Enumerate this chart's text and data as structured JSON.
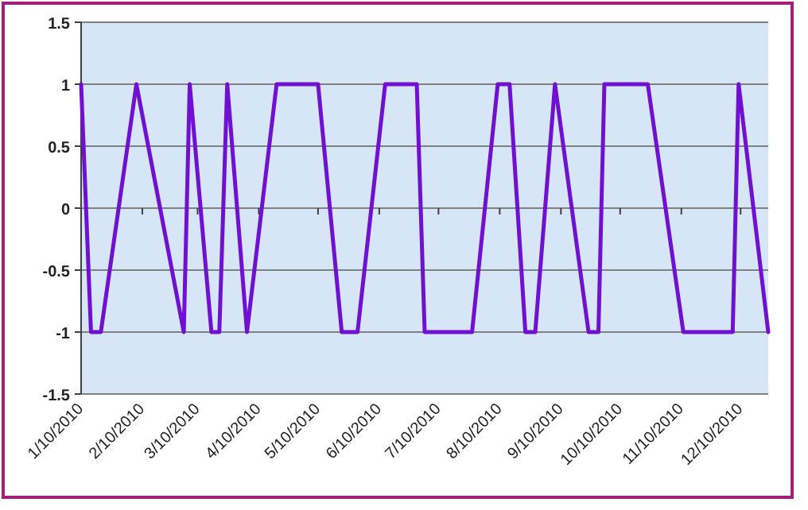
{
  "chart_data": {
    "type": "line",
    "x": [
      "2010-01-10",
      "2010-01-15",
      "2010-01-20",
      "2010-02-07",
      "2010-03-03",
      "2010-03-06",
      "2010-03-17",
      "2010-03-21",
      "2010-03-25",
      "2010-04-04",
      "2010-04-19",
      "2010-05-10",
      "2010-05-22",
      "2010-05-30",
      "2010-06-13",
      "2010-06-29",
      "2010-07-03",
      "2010-07-27",
      "2010-08-09",
      "2010-08-15",
      "2010-08-23",
      "2010-08-28",
      "2010-09-07",
      "2010-09-24",
      "2010-09-29",
      "2010-10-02",
      "2010-10-24",
      "2010-11-11",
      "2010-12-06",
      "2010-12-09",
      "2010-12-24"
    ],
    "series": [
      {
        "color": "#7010d0",
        "values": [
          1,
          -1,
          -1,
          1,
          -1,
          1,
          -1,
          -1,
          1,
          -1,
          1,
          1,
          -1,
          -1,
          1,
          1,
          -1,
          -1,
          1,
          1,
          -1,
          -1,
          1,
          -1,
          -1,
          1,
          1,
          -1,
          -1,
          1,
          -1
        ]
      }
    ],
    "xlim": [
      "2010-01-10",
      "2010-12-24"
    ],
    "xticks": [
      {
        "value": "2010-01-10",
        "label": "1/10/2010"
      },
      {
        "value": "2010-02-10",
        "label": "2/10/2010"
      },
      {
        "value": "2010-03-10",
        "label": "3/10/2010"
      },
      {
        "value": "2010-04-10",
        "label": "4/10/2010"
      },
      {
        "value": "2010-05-10",
        "label": "5/10/2010"
      },
      {
        "value": "2010-06-10",
        "label": "6/10/2010"
      },
      {
        "value": "2010-07-10",
        "label": "7/10/2010"
      },
      {
        "value": "2010-08-10",
        "label": "8/10/2010"
      },
      {
        "value": "2010-09-10",
        "label": "9/10/2010"
      },
      {
        "value": "2010-10-10",
        "label": "10/10/2010"
      },
      {
        "value": "2010-11-10",
        "label": "11/10/2010"
      },
      {
        "value": "2010-12-10",
        "label": "12/10/2010"
      }
    ],
    "ylim": [
      -1.5,
      1.5
    ],
    "yticks": [
      -1.5,
      -1,
      -0.5,
      0,
      0.5,
      1,
      1.5
    ],
    "grid": "y",
    "marker": "none",
    "line_style": "solid"
  }
}
